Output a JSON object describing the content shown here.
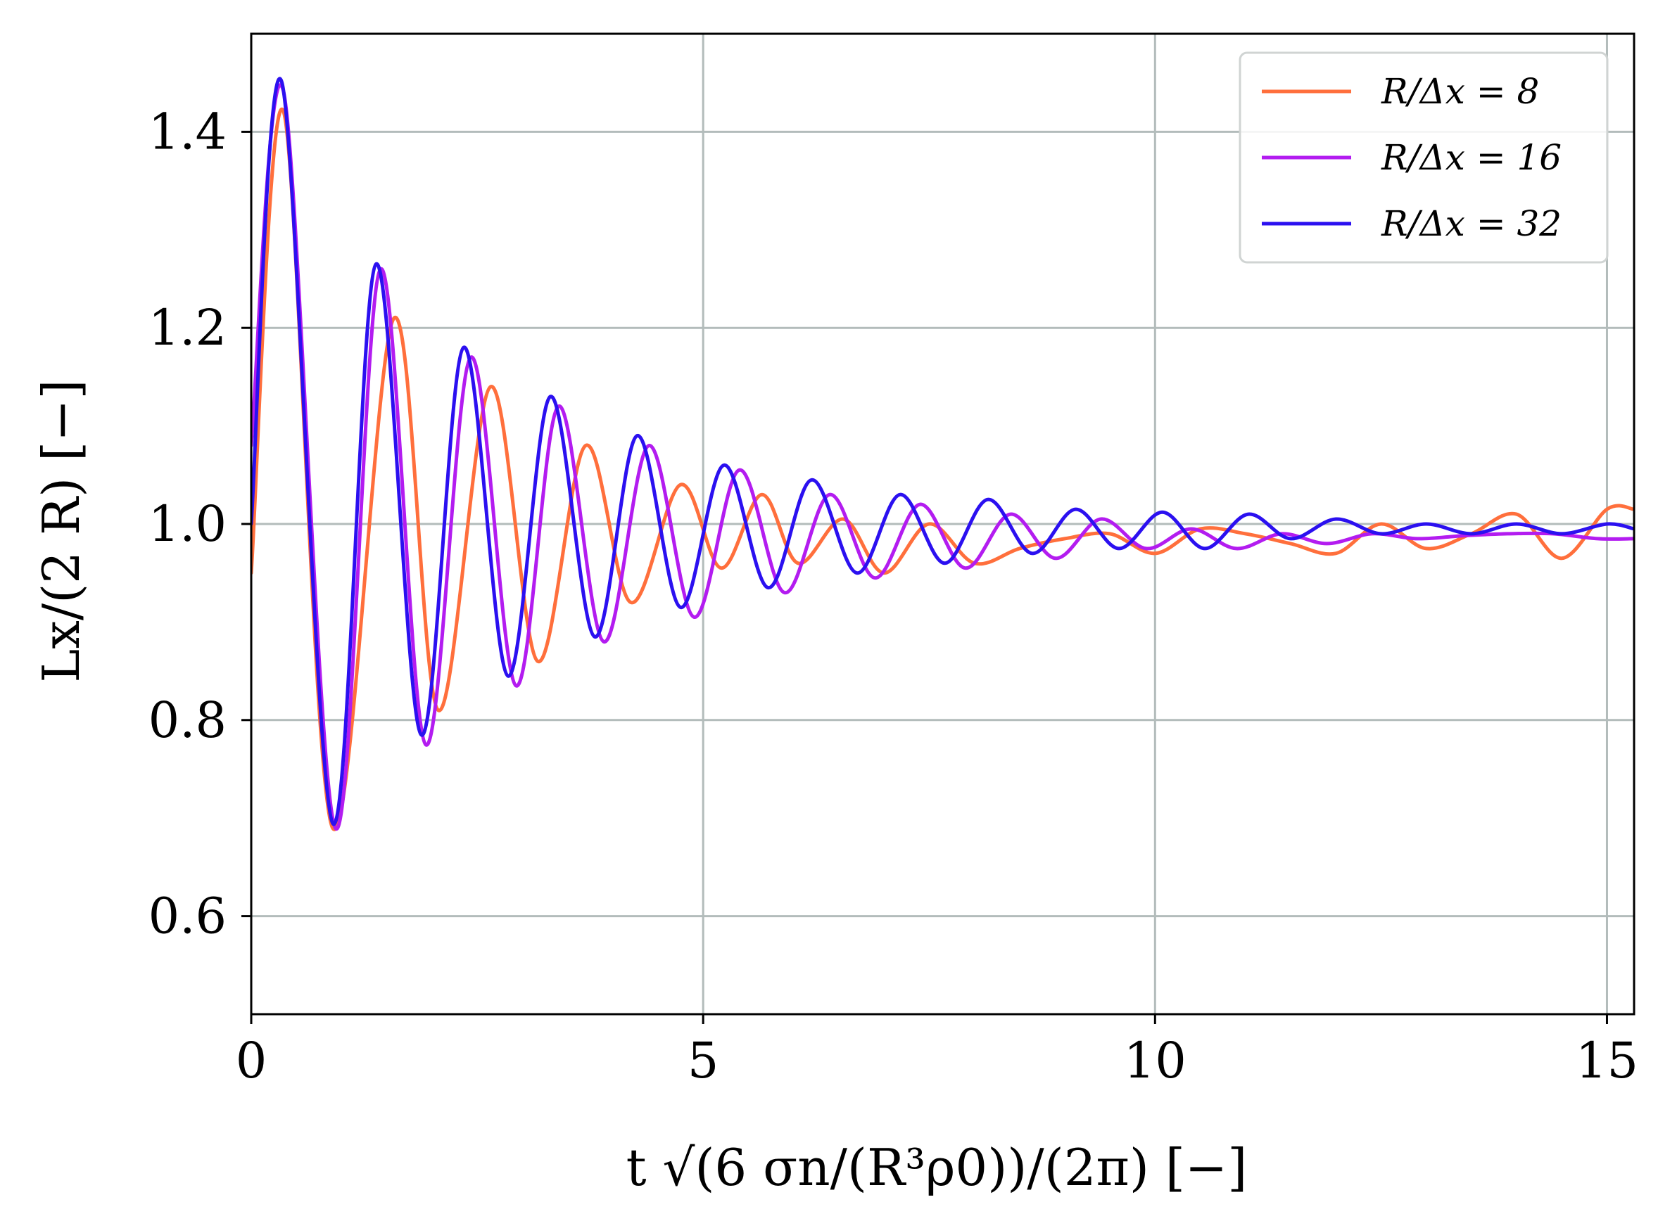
{
  "chart_data": {
    "type": "line",
    "xlabel": "t √(6 σn/(R³ρ0))/(2π) [−]",
    "ylabel": "Lx/(2 R) [−]",
    "xlim": [
      0,
      15.3
    ],
    "ylim": [
      0.5,
      1.5
    ],
    "xticks": [
      "0",
      "5",
      "10",
      "15"
    ],
    "yticks": [
      "0.6",
      "0.8",
      "1.0",
      "1.2",
      "1.4"
    ],
    "grid": true,
    "legend": "top-right",
    "series": [
      {
        "name": "R/Δx = 8",
        "color": "#ff6f3c",
        "x": [
          0,
          0.36,
          0.9,
          1.58,
          2.07,
          2.65,
          3.17,
          3.7,
          4.2,
          4.75,
          5.2,
          5.65,
          6.05,
          6.55,
          7.0,
          7.5,
          8.0,
          8.5,
          9.0,
          9.5,
          10.0,
          10.5,
          11.0,
          11.5,
          12.0,
          12.5,
          13.0,
          13.5,
          14.0,
          14.5,
          15.0,
          15.3
        ],
        "y": [
          0.95,
          1.42,
          0.69,
          1.21,
          0.81,
          1.14,
          0.86,
          1.08,
          0.92,
          1.04,
          0.955,
          1.03,
          0.96,
          1.005,
          0.95,
          1.0,
          0.96,
          0.975,
          0.985,
          0.99,
          0.97,
          0.995,
          0.99,
          0.98,
          0.97,
          1.0,
          0.975,
          0.99,
          1.01,
          0.965,
          1.015,
          1.015
        ]
      },
      {
        "name": "R/Δx = 16",
        "color": "#b31cf0",
        "x": [
          0,
          0.36,
          0.93,
          1.43,
          1.93,
          2.43,
          2.93,
          3.4,
          3.9,
          4.4,
          4.9,
          5.4,
          5.9,
          6.4,
          6.9,
          7.4,
          7.9,
          8.4,
          8.9,
          9.4,
          9.9,
          10.4,
          10.9,
          11.4,
          11.9,
          12.4,
          12.9,
          13.4,
          13.9,
          14.4,
          14.9,
          15.3
        ],
        "y": [
          1.08,
          1.44,
          0.69,
          1.26,
          0.775,
          1.17,
          0.835,
          1.12,
          0.88,
          1.08,
          0.905,
          1.055,
          0.93,
          1.03,
          0.945,
          1.02,
          0.955,
          1.01,
          0.965,
          1.005,
          0.975,
          0.995,
          0.975,
          0.99,
          0.98,
          0.99,
          0.985,
          0.988,
          0.99,
          0.99,
          0.985,
          0.985
        ]
      },
      {
        "name": "R/Δx = 32",
        "color": "#2b10f0",
        "x": [
          0,
          0.34,
          0.9,
          1.38,
          1.88,
          2.35,
          2.84,
          3.31,
          3.8,
          4.27,
          4.75,
          5.23,
          5.72,
          6.2,
          6.7,
          7.18,
          7.67,
          8.15,
          8.64,
          9.12,
          9.6,
          10.08,
          10.55,
          11.03,
          11.5,
          12.0,
          12.5,
          13.0,
          13.5,
          14.0,
          14.5,
          15.0,
          15.3
        ],
        "y": [
          1.0,
          1.45,
          0.695,
          1.265,
          0.785,
          1.18,
          0.845,
          1.13,
          0.885,
          1.09,
          0.915,
          1.06,
          0.935,
          1.045,
          0.95,
          1.03,
          0.96,
          1.025,
          0.97,
          1.015,
          0.975,
          1.012,
          0.975,
          1.01,
          0.985,
          1.005,
          0.99,
          1.0,
          0.99,
          1.0,
          0.99,
          1.0,
          0.995
        ]
      }
    ]
  }
}
